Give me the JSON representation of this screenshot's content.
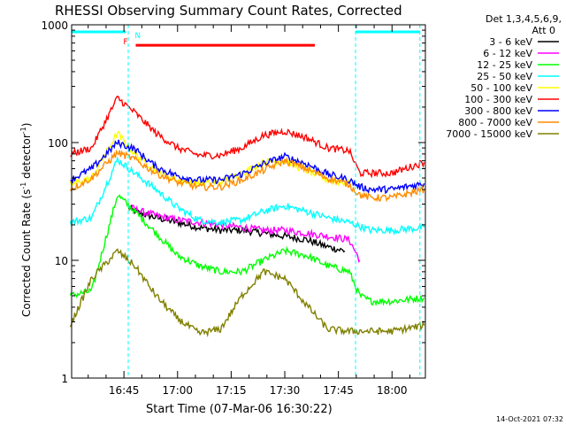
{
  "chart_data": {
    "type": "line",
    "title": "RHESSI Observing Summary Count Rates, Corrected",
    "xlabel": "Start Time (07-Mar-06 16:30:22)",
    "ylabel_main": "Corrected Count Rate (s",
    "ylabel_sup1": "-1",
    "ylabel_mid": " detector",
    "ylabel_sup2": "-1",
    "ylabel_end": ")",
    "yscale": "log",
    "ylim": [
      1,
      1000
    ],
    "xlim": [
      16.5061,
      18.1556
    ],
    "x_ticks": [
      {
        "x": 16.75,
        "label": "16:45"
      },
      {
        "x": 17.0,
        "label": "17:00"
      },
      {
        "x": 17.25,
        "label": "17:15"
      },
      {
        "x": 17.5,
        "label": "17:30"
      },
      {
        "x": 17.75,
        "label": "17:45"
      },
      {
        "x": 18.0,
        "label": "18:00"
      }
    ],
    "y_ticks": [
      {
        "y": 1,
        "label": "1"
      },
      {
        "y": 10,
        "label": "10"
      },
      {
        "y": 100,
        "label": "100"
      },
      {
        "y": 1000,
        "label": "1000"
      }
    ],
    "legend_header": [
      "Det 1,3,4,5,6,9,",
      "Att 0"
    ],
    "series": [
      {
        "name": "3 - 6 keV",
        "color": "#000000",
        "t": [
          16.77,
          16.8,
          16.9,
          17.0,
          17.1,
          17.2,
          17.3,
          17.4,
          17.5,
          17.6,
          17.7,
          17.78
        ],
        "v": [
          28,
          26,
          23,
          21,
          19,
          18,
          18,
          17,
          16,
          15,
          13,
          12
        ]
      },
      {
        "name": "6 - 12 keV",
        "color": "#ff00ff",
        "t": [
          16.77,
          16.8,
          16.9,
          17.0,
          17.1,
          17.2,
          17.3,
          17.4,
          17.5,
          17.6,
          17.7,
          17.8,
          17.85
        ],
        "v": [
          29,
          27,
          24,
          22,
          21,
          20,
          19,
          18,
          18,
          17,
          16,
          15,
          10
        ]
      },
      {
        "name": "12 - 25 keV",
        "color": "#00ff00",
        "t": [
          16.5,
          16.6,
          16.72,
          16.8,
          16.9,
          17.0,
          17.1,
          17.2,
          17.3,
          17.4,
          17.5,
          17.6,
          17.7,
          17.8,
          17.85,
          17.9,
          18.0,
          18.15
        ],
        "v": [
          5,
          5.5,
          36,
          26,
          17,
          11,
          9,
          8,
          8,
          10,
          12,
          11,
          9,
          8,
          5,
          4.5,
          4.5,
          4.8
        ]
      },
      {
        "name": "25 - 50 keV",
        "color": "#00ffff",
        "t": [
          16.5,
          16.6,
          16.72,
          16.8,
          16.9,
          17.0,
          17.1,
          17.2,
          17.3,
          17.4,
          17.5,
          17.6,
          17.7,
          17.8,
          17.9,
          18.0,
          18.15
        ],
        "v": [
          21,
          23,
          72,
          55,
          40,
          28,
          22,
          21,
          22,
          26,
          29,
          26,
          23,
          21,
          18,
          18,
          19
        ]
      },
      {
        "name": "50 - 100 keV",
        "color": "#ffff00",
        "t": [
          16.5,
          16.6,
          16.72,
          16.8,
          16.9,
          17.0,
          17.1,
          17.2,
          17.3,
          17.4,
          17.5,
          17.6,
          17.7,
          17.8
        ],
        "v": [
          44,
          50,
          120,
          80,
          58,
          48,
          45,
          46,
          55,
          68,
          70,
          58,
          48,
          45
        ]
      },
      {
        "name": "100 - 300 keV",
        "color": "#ff0000",
        "t": [
          16.5,
          16.6,
          16.72,
          16.8,
          16.9,
          17.0,
          17.1,
          17.2,
          17.3,
          17.4,
          17.5,
          17.6,
          17.7,
          17.8,
          17.85,
          17.9,
          18.0,
          18.15
        ],
        "v": [
          80,
          90,
          240,
          180,
          120,
          90,
          78,
          78,
          90,
          115,
          125,
          110,
          90,
          85,
          55,
          55,
          55,
          68
        ]
      },
      {
        "name": "300 - 800 keV",
        "color": "#0000ff",
        "t": [
          16.5,
          16.6,
          16.72,
          16.8,
          16.9,
          17.0,
          17.1,
          17.2,
          17.3,
          17.4,
          17.5,
          17.6,
          17.7,
          17.8,
          17.85,
          17.9,
          18.0,
          18.15
        ],
        "v": [
          48,
          60,
          100,
          88,
          62,
          52,
          48,
          48,
          54,
          66,
          76,
          66,
          54,
          48,
          42,
          40,
          40,
          45
        ]
      },
      {
        "name": "800 - 7000 keV",
        "color": "#ff8c00",
        "t": [
          16.5,
          16.6,
          16.72,
          16.8,
          16.9,
          17.0,
          17.1,
          17.2,
          17.3,
          17.4,
          17.5,
          17.6,
          17.7,
          17.8,
          17.85,
          17.9,
          18.0,
          18.15
        ],
        "v": [
          40,
          50,
          82,
          72,
          55,
          46,
          42,
          42,
          48,
          58,
          70,
          60,
          50,
          44,
          36,
          34,
          34,
          40
        ]
      },
      {
        "name": "7000 - 15000 keV",
        "color": "#808000",
        "t": [
          16.5,
          16.6,
          16.72,
          16.8,
          16.9,
          17.0,
          17.1,
          17.2,
          17.3,
          17.4,
          17.5,
          17.6,
          17.7,
          17.8,
          17.9,
          18.0,
          18.15
        ],
        "v": [
          2.8,
          7,
          12,
          9,
          5,
          3.2,
          2.4,
          2.6,
          5,
          8,
          7,
          4.2,
          2.6,
          2.5,
          2.5,
          2.5,
          2.8
        ]
      }
    ],
    "annotations": [
      {
        "text": "F",
        "color": "#ff0000",
        "x": 16.78
      },
      {
        "text": "N",
        "color": "#00ffff",
        "x": 16.78
      }
    ],
    "flare_bar": {
      "color": "#ff0000",
      "x0": 16.805,
      "x1": 17.64,
      "y": 670
    },
    "night_bars": [
      {
        "color": "#00ffff",
        "x0": 16.5061,
        "x1": 16.76,
        "y": 870
      },
      {
        "color": "#00ffff",
        "x0": 17.83,
        "x1": 18.13,
        "y": 870
      }
    ],
    "saa_lines": [
      16.5061,
      16.77,
      17.83,
      18.13
    ],
    "footer_date": "14-Oct-2021 07:32"
  }
}
